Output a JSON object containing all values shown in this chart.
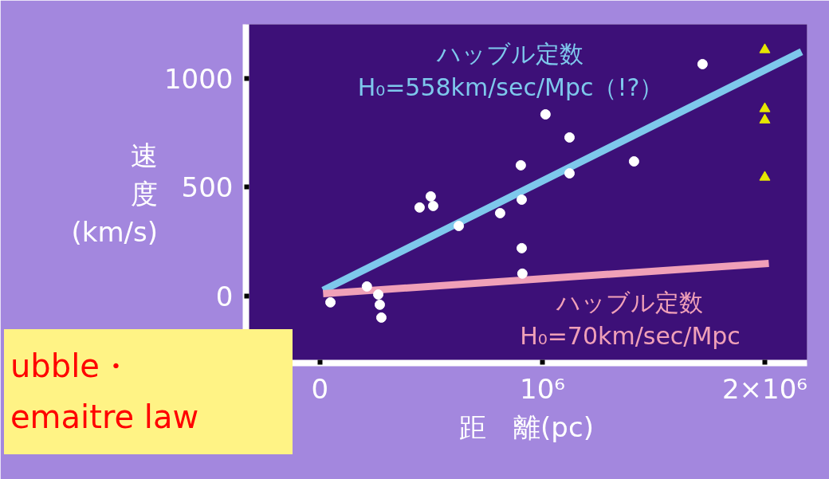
{
  "chart_data": {
    "type": "scatter",
    "xlabel": "距　離(pc)",
    "ylabel": "速度(km/s)",
    "xlim": [
      -333000,
      2190000
    ],
    "ylim": [
      -308,
      1249
    ],
    "xticks": [
      0,
      {
        "value": 1000000,
        "label": "10⁶"
      },
      {
        "value": 2000000,
        "label": "2×10⁶"
      }
    ],
    "yticks": [
      0,
      500,
      1000
    ],
    "grid": false,
    "series": [
      {
        "marker": "circle",
        "color": "#ffffff",
        "x": [
          47000,
          211000,
          262000,
          269000,
          276000,
          448000,
          498000,
          509000,
          624000,
          810000,
          903000,
          907000,
          907000,
          910000,
          1014000,
          1122000,
          1122000,
          1412000,
          1720000
        ],
        "values": [
          -29,
          44,
          7,
          -40,
          -99,
          407,
          458,
          414,
          322,
          381,
          601,
          443,
          220,
          103,
          835,
          729,
          564,
          619,
          1066
        ]
      },
      {
        "marker": "triangle",
        "color": "#e6e600",
        "x": [
          2000000,
          2000000,
          2000000,
          2000000
        ],
        "values": [
          1132,
          861,
          809,
          546
        ]
      },
      {
        "type": "line",
        "color": "#7ec8ec",
        "x": [
          14000,
          2165000
        ],
        "values": [
          26,
          1123
        ]
      },
      {
        "type": "line",
        "color": "#f0a0b8",
        "x": [
          14000,
          2018000
        ],
        "values": [
          11,
          150
        ]
      }
    ],
    "annotations": [
      "ハッブル定数\nH₀=558km/sec/Mpc（!?）",
      "ハッブル定数\nH₀=70km/sec/Mpc",
      "ubble・\nemaitre law"
    ]
  }
}
